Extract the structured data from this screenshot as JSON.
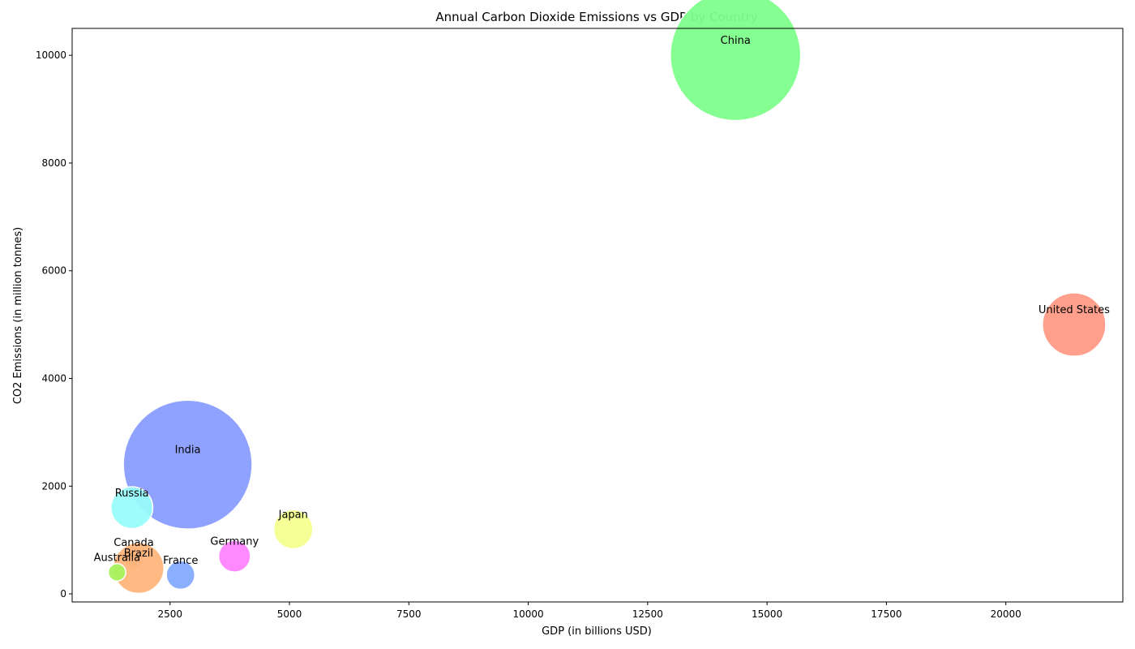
{
  "chart_data": {
    "type": "scatter",
    "title": "Annual Carbon Dioxide Emissions vs GDP by Country",
    "xlabel": "GDP (in billions USD)",
    "ylabel": "CO2 Emissions (in million tonnes)",
    "xlim": [
      450,
      22450
    ],
    "ylim": [
      -150,
      10500
    ],
    "xticks": [
      2500,
      5000,
      7500,
      10000,
      12500,
      15000,
      17500,
      20000
    ],
    "yticks": [
      0,
      2000,
      4000,
      6000,
      8000,
      10000
    ],
    "grid": false,
    "points": [
      {
        "label": "China",
        "x": 14340,
        "y": 10000,
        "size": 1400,
        "color": "#80ff8c"
      },
      {
        "label": "United States",
        "x": 21430,
        "y": 5000,
        "size": 330,
        "color": "#ff9a86"
      },
      {
        "label": "India",
        "x": 2870,
        "y": 2400,
        "size": 1366,
        "color": "#8a9dff"
      },
      {
        "label": "Russia",
        "x": 1700,
        "y": 1600,
        "size": 144,
        "color": "#99fcfa"
      },
      {
        "label": "Japan",
        "x": 5080,
        "y": 1200,
        "size": 126,
        "color": "#f3ff8f"
      },
      {
        "label": "Germany",
        "x": 3850,
        "y": 700,
        "size": 83,
        "color": "#ff84ff"
      },
      {
        "label": "Canada",
        "x": 1740,
        "y": 680,
        "size": 38,
        "color": "#e7907b"
      },
      {
        "label": "Brazil",
        "x": 1840,
        "y": 480,
        "size": 212,
        "color": "#ffb67c"
      },
      {
        "label": "France",
        "x": 2720,
        "y": 350,
        "size": 67,
        "color": "#85abff"
      },
      {
        "label": "Australia",
        "x": 1390,
        "y": 400,
        "size": 25,
        "color": "#a6f25c"
      }
    ]
  }
}
